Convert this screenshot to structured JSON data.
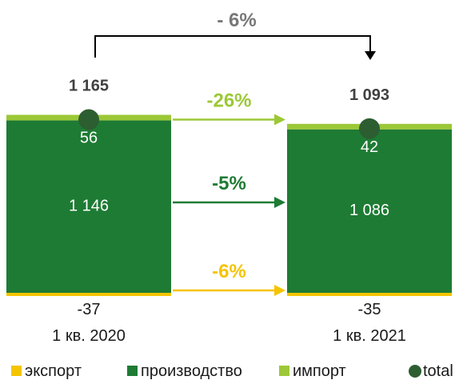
{
  "chart_data": {
    "type": "bar",
    "stacked": true,
    "categories": [
      "1 кв. 2020",
      "1 кв. 2021"
    ],
    "series": [
      {
        "name": "экспорт",
        "values": [
          -37,
          -35
        ],
        "color": "#f5c400"
      },
      {
        "name": "производство",
        "values": [
          1146,
          1086
        ],
        "color": "#1e7b34"
      },
      {
        "name": "импорт",
        "values": [
          56,
          42
        ],
        "color": "#9cc837"
      }
    ],
    "totals": {
      "name": "total",
      "values": [
        1165,
        1093
      ],
      "color": "#2d5e31"
    },
    "total_labels": [
      "1 165",
      "1 093"
    ],
    "value_labels": {
      "export": [
        "-37",
        "-35"
      ],
      "production": [
        "1 146",
        "1 086"
      ],
      "import": [
        "56",
        "42"
      ]
    },
    "changes": {
      "total": "- 6%",
      "import": "-26%",
      "production": "-5%",
      "export": "-6%"
    },
    "change_colors": {
      "total": "#777777",
      "import": "#9cc837",
      "production": "#1e7b34",
      "export": "#f5c400"
    },
    "legend": {
      "placement": "bottom",
      "items": [
        {
          "name": "экспорт",
          "color": "#f5c400",
          "marker": "square"
        },
        {
          "name": "производство",
          "color": "#1e7b34",
          "marker": "square"
        },
        {
          "name": "импорт",
          "color": "#9cc837",
          "marker": "square"
        },
        {
          "name": "total",
          "color": "#2d5e31",
          "marker": "circle"
        }
      ]
    }
  }
}
